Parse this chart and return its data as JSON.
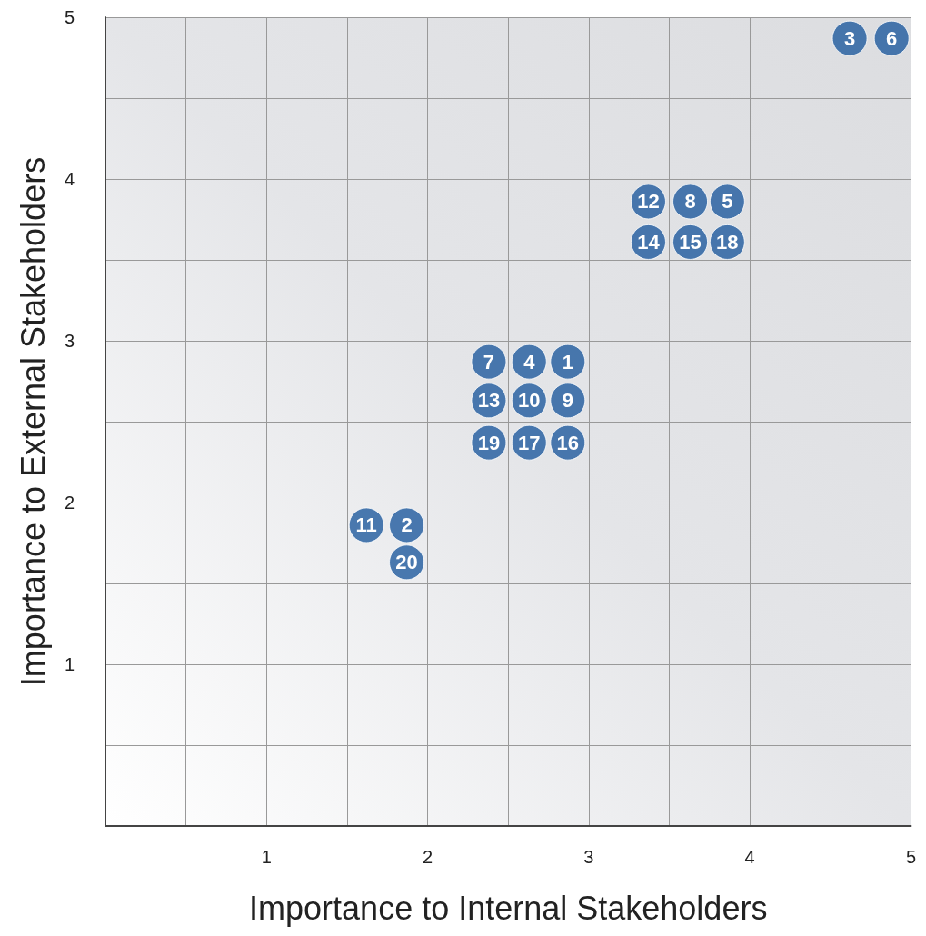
{
  "chart_data": {
    "type": "scatter",
    "xlabel": "Importance to Internal Stakeholders",
    "ylabel": "Importance to External Stakeholders",
    "xlim": [
      0,
      5
    ],
    "ylim": [
      0,
      5
    ],
    "xticks": [
      {
        "value": 0,
        "label": null
      },
      {
        "value": 0.5,
        "label": null
      },
      1,
      {
        "value": 1.5,
        "label": null
      },
      2,
      {
        "value": 2.5,
        "label": null
      },
      3,
      {
        "value": 3.5,
        "label": null
      },
      4,
      {
        "value": 4.5,
        "label": null
      },
      5
    ],
    "yticks": [
      {
        "value": 0,
        "label": null
      },
      {
        "value": 0.5,
        "label": null
      },
      1,
      {
        "value": 1.5,
        "label": null
      },
      2,
      {
        "value": 2.5,
        "label": null
      },
      3,
      {
        "value": 3.5,
        "label": null
      },
      4,
      {
        "value": 4.5,
        "label": null
      },
      5
    ],
    "grid": true,
    "marker": "circle",
    "series": [
      {
        "color": "#1f5a9e",
        "x": [
          4.62,
          4.88,
          3.37,
          3.63,
          3.86,
          3.37,
          3.63,
          3.86,
          2.38,
          2.63,
          2.87,
          2.38,
          2.63,
          2.87,
          2.38,
          2.63,
          2.87,
          1.62,
          1.87,
          1.87
        ],
        "values": [
          4.87,
          4.87,
          3.86,
          3.86,
          3.86,
          3.61,
          3.61,
          3.61,
          2.87,
          2.87,
          2.87,
          2.63,
          2.63,
          2.63,
          2.37,
          2.37,
          2.37,
          1.86,
          1.86,
          1.63
        ]
      }
    ],
    "annotations": [
      {
        "text": "3",
        "x": 4.62,
        "y": 4.87
      },
      {
        "text": "6",
        "x": 4.88,
        "y": 4.87
      },
      {
        "text": "12",
        "x": 3.37,
        "y": 3.86
      },
      {
        "text": "8",
        "x": 3.63,
        "y": 3.86
      },
      {
        "text": "5",
        "x": 3.86,
        "y": 3.86
      },
      {
        "text": "14",
        "x": 3.37,
        "y": 3.61
      },
      {
        "text": "15",
        "x": 3.63,
        "y": 3.61
      },
      {
        "text": "18",
        "x": 3.86,
        "y": 3.61
      },
      {
        "text": "7",
        "x": 2.38,
        "y": 2.87
      },
      {
        "text": "4",
        "x": 2.63,
        "y": 2.87
      },
      {
        "text": "1",
        "x": 2.87,
        "y": 2.87
      },
      {
        "text": "13",
        "x": 2.38,
        "y": 2.63
      },
      {
        "text": "10",
        "x": 2.63,
        "y": 2.63
      },
      {
        "text": "9",
        "x": 2.87,
        "y": 2.63
      },
      {
        "text": "19",
        "x": 2.38,
        "y": 2.37
      },
      {
        "text": "17",
        "x": 2.63,
        "y": 2.37
      },
      {
        "text": "16",
        "x": 2.87,
        "y": 2.37
      },
      {
        "text": "11",
        "x": 1.62,
        "y": 1.86
      },
      {
        "text": "2",
        "x": 1.87,
        "y": 1.86
      },
      {
        "text": "20",
        "x": 1.87,
        "y": 1.63
      }
    ]
  }
}
